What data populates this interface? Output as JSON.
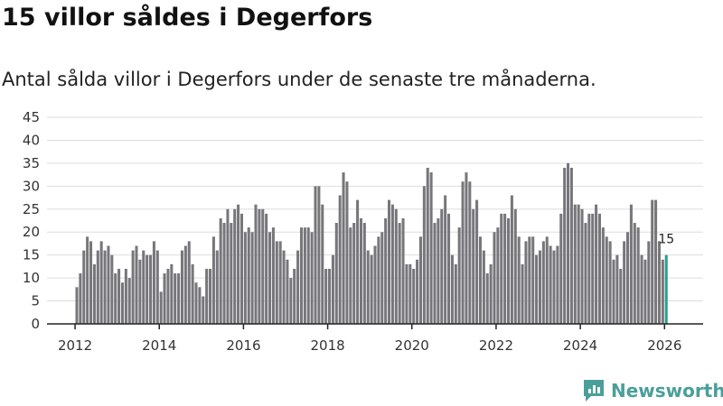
{
  "header": {
    "title": "15 villor såldes i Degerfors",
    "subtitle": "Antal sålda villor i Degerfors under de senaste tre månaderna."
  },
  "brand": {
    "name": "Newsworthy",
    "icon": "newsworthy-logo-icon",
    "color": "#4a9f9a"
  },
  "colors": {
    "bar": "#76767b",
    "highlight": "#2a9d8f",
    "grid": "#dddddd",
    "axis": "#222222"
  },
  "chart_data": {
    "type": "bar",
    "title": "15 villor såldes i Degerfors",
    "subtitle": "Antal sålda villor i Degerfors under de senaste tre månaderna.",
    "x_start": "2012-01",
    "x_interval": "month",
    "xlim": [
      "2011-05",
      "2026-12"
    ],
    "ylim": [
      0,
      45
    ],
    "y_ticks": [
      "0",
      "5",
      "10",
      "15",
      "20",
      "25",
      "30",
      "35",
      "40",
      "45"
    ],
    "x_ticks": [
      {
        "label": "2012",
        "date": "2012-01"
      },
      {
        "label": "2014",
        "date": "2014-01"
      },
      {
        "label": "2016",
        "date": "2016-01"
      },
      {
        "label": "2018",
        "date": "2018-01"
      },
      {
        "label": "2020",
        "date": "2020-01"
      },
      {
        "label": "2022",
        "date": "2022-01"
      },
      {
        "label": "2024",
        "date": "2024-01"
      },
      {
        "label": "2026",
        "date": "2026-01"
      }
    ],
    "values": [
      8,
      11,
      16,
      19,
      18,
      13,
      16,
      18,
      16,
      17,
      15,
      11,
      12,
      9,
      12,
      10,
      16,
      17,
      14,
      16,
      15,
      15,
      18,
      16,
      7,
      11,
      12,
      13,
      11,
      11,
      16,
      17,
      18,
      13,
      9,
      8,
      6,
      12,
      12,
      19,
      16,
      23,
      22,
      25,
      22,
      25,
      26,
      24,
      20,
      21,
      20,
      26,
      25,
      25,
      24,
      20,
      21,
      18,
      18,
      16,
      14,
      10,
      12,
      16,
      21,
      21,
      21,
      20,
      30,
      30,
      26,
      12,
      12,
      15,
      22,
      28,
      33,
      31,
      21,
      22,
      27,
      23,
      22,
      16,
      15,
      17,
      19,
      20,
      23,
      27,
      26,
      25,
      22,
      23,
      13,
      13,
      12,
      14,
      19,
      30,
      34,
      33,
      22,
      23,
      25,
      28,
      24,
      15,
      13,
      21,
      31,
      33,
      31,
      25,
      27,
      19,
      16,
      11,
      13,
      20,
      21,
      24,
      24,
      23,
      28,
      25,
      19,
      13,
      18,
      19,
      19,
      15,
      16,
      18,
      19,
      17,
      16,
      17,
      24,
      34,
      35,
      34,
      26,
      26,
      25,
      22,
      24,
      24,
      26,
      24,
      21,
      19,
      18,
      14,
      15,
      12,
      18,
      20,
      26,
      22,
      21,
      15,
      14,
      18,
      27,
      27,
      18,
      14,
      15
    ],
    "highlight_last": true,
    "annotation": {
      "label": "15",
      "value": 15
    },
    "grid": true
  }
}
